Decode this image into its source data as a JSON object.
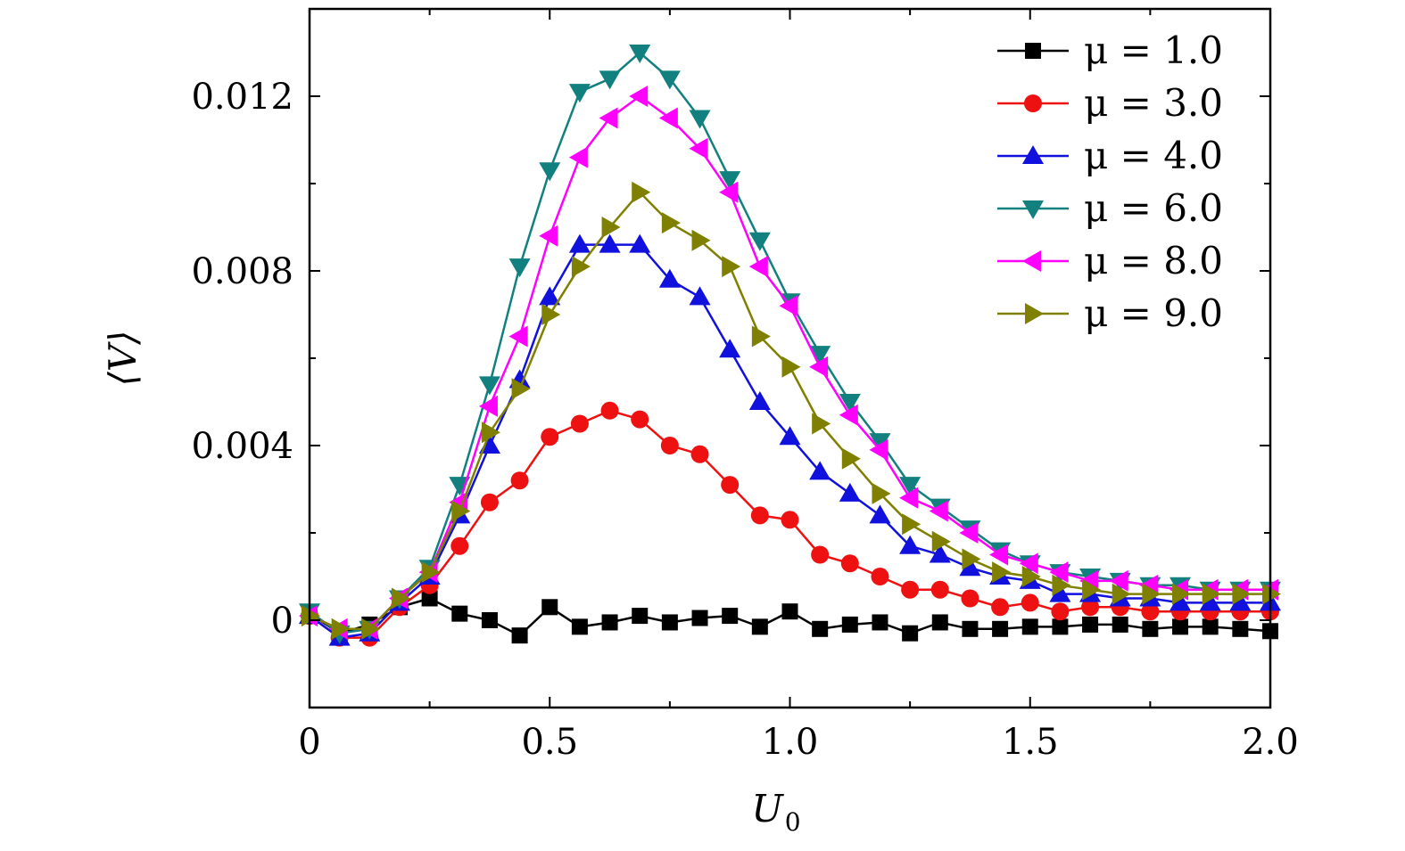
{
  "chart_data": {
    "type": "line",
    "title": "",
    "xlabel": "U",
    "xlabel_sub": "0",
    "ylabel": "⟨V⟩",
    "xlim": [
      0,
      2.0
    ],
    "ylim": [
      -0.002,
      0.014
    ],
    "xticks": [
      0,
      0.5,
      1.0,
      1.5,
      2.0
    ],
    "xtick_labels": [
      "0",
      "0.5",
      "1.0",
      "1.5",
      "2.0"
    ],
    "yticks": [
      0,
      0.004,
      0.008,
      0.012
    ],
    "ytick_labels": [
      "0",
      "0.004",
      "0.008",
      "0.012"
    ],
    "grid": false,
    "legend_position": "top-right",
    "x": [
      0,
      0.0625,
      0.125,
      0.1875,
      0.25,
      0.3125,
      0.375,
      0.4375,
      0.5,
      0.5625,
      0.625,
      0.6875,
      0.75,
      0.8125,
      0.875,
      0.9375,
      1.0,
      1.0625,
      1.125,
      1.1875,
      1.25,
      1.3125,
      1.375,
      1.4375,
      1.5,
      1.5625,
      1.625,
      1.6875,
      1.75,
      1.8125,
      1.875,
      1.9375,
      2.0
    ],
    "series": [
      {
        "name": "μ = 1.0",
        "color": "#000000",
        "marker": "square",
        "values": [
          0.00015,
          -0.0003,
          -0.0001,
          0.0003,
          0.0005,
          0.00015,
          0.0,
          -0.00035,
          0.0003,
          -0.00015,
          -5e-05,
          0.0001,
          -5e-05,
          5e-05,
          0.0001,
          -0.00015,
          0.0002,
          -0.0002,
          -0.0001,
          -5e-05,
          -0.0003,
          -5e-05,
          -0.0002,
          -0.0002,
          -0.00015,
          -0.00015,
          -0.0001,
          -0.0001,
          -0.0002,
          -0.00015,
          -0.00015,
          -0.0002,
          -0.00025
        ]
      },
      {
        "name": "μ = 3.0",
        "color": "#ee1111",
        "marker": "circle",
        "values": [
          0.0001,
          -0.0004,
          -0.0004,
          0.0003,
          0.0008,
          0.0017,
          0.0027,
          0.0032,
          0.0042,
          0.0045,
          0.0048,
          0.0046,
          0.004,
          0.0038,
          0.0031,
          0.0024,
          0.0023,
          0.0015,
          0.0013,
          0.001,
          0.0007,
          0.0007,
          0.0005,
          0.0003,
          0.0004,
          0.0002,
          0.0003,
          0.0003,
          0.0002,
          0.0002,
          0.0002,
          0.0002,
          0.0002
        ]
      },
      {
        "name": "μ = 4.0",
        "color": "#1111dd",
        "marker": "triangle-up",
        "values": [
          0.0001,
          -0.0004,
          -0.0003,
          0.0004,
          0.001,
          0.0024,
          0.004,
          0.0055,
          0.0074,
          0.0086,
          0.0086,
          0.0086,
          0.0078,
          0.0074,
          0.0062,
          0.005,
          0.0042,
          0.0034,
          0.0029,
          0.0024,
          0.0017,
          0.0015,
          0.0012,
          0.001,
          0.0009,
          0.0006,
          0.0006,
          0.0005,
          0.0005,
          0.0004,
          0.0004,
          0.0004,
          0.0004
        ]
      },
      {
        "name": "μ = 6.0",
        "color": "#138080",
        "marker": "triangle-down",
        "values": [
          0.0002,
          -0.0003,
          -0.0002,
          0.0005,
          0.0012,
          0.0031,
          0.0054,
          0.0081,
          0.0103,
          0.0121,
          0.0124,
          0.013,
          0.0124,
          0.0115,
          0.0101,
          0.0087,
          0.0073,
          0.0061,
          0.005,
          0.0041,
          0.0031,
          0.0026,
          0.0021,
          0.0016,
          0.0013,
          0.0011,
          0.001,
          0.0009,
          0.0008,
          0.0008,
          0.0007,
          0.0007,
          0.0007
        ]
      },
      {
        "name": "μ = 8.0",
        "color": "#ff00ff",
        "marker": "triangle-left",
        "values": [
          0.0001,
          -0.0002,
          -0.0002,
          0.0005,
          0.0011,
          0.0027,
          0.0049,
          0.0065,
          0.0088,
          0.0106,
          0.0115,
          0.012,
          0.0115,
          0.0108,
          0.0098,
          0.0081,
          0.0072,
          0.0058,
          0.0047,
          0.0039,
          0.0028,
          0.0025,
          0.002,
          0.0015,
          0.0013,
          0.0011,
          0.0009,
          0.0009,
          0.0008,
          0.0007,
          0.0007,
          0.0007,
          0.0007
        ]
      },
      {
        "name": "μ = 9.0",
        "color": "#808000",
        "marker": "triangle-right",
        "values": [
          0.0001,
          -0.0002,
          -0.0002,
          0.0005,
          0.0011,
          0.0025,
          0.0043,
          0.0053,
          0.007,
          0.0081,
          0.009,
          0.0098,
          0.0091,
          0.0087,
          0.0081,
          0.0065,
          0.0058,
          0.0045,
          0.0037,
          0.0029,
          0.0022,
          0.0018,
          0.0014,
          0.0011,
          0.001,
          0.0008,
          0.0007,
          0.0006,
          0.0006,
          0.0006,
          0.0006,
          0.0006,
          0.0006
        ]
      }
    ]
  }
}
